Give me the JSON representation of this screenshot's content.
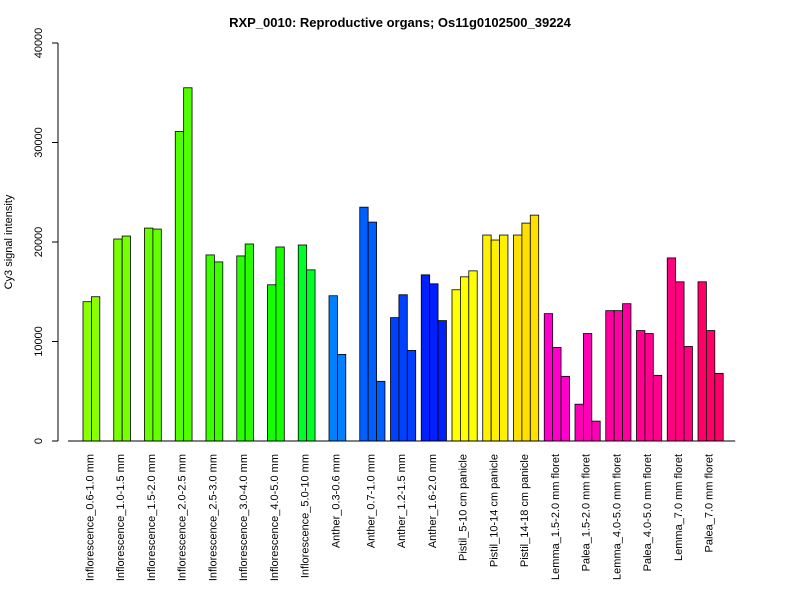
{
  "chart_data": {
    "type": "bar",
    "title": "RXP_0010: Reproductive organs; Os11g0102500_39224",
    "xlabel": "",
    "ylabel": "Cy3 signal intensity",
    "ylim": [
      0,
      40000
    ],
    "yticks": [
      "0",
      "10000",
      "20000",
      "30000",
      "40000"
    ],
    "grid": false,
    "legend": "none",
    "groups": [
      {
        "label": "Inflorescence_0.6-1.0 mm",
        "color": "#8cff00",
        "values": [
          14000,
          14500
        ]
      },
      {
        "label": "Inflorescence_1.0-1.5 mm",
        "color": "#78ff00",
        "values": [
          20300,
          20600
        ]
      },
      {
        "label": "Inflorescence_1.5-2.0 mm",
        "color": "#64ff00",
        "values": [
          21400,
          21300
        ]
      },
      {
        "label": "Inflorescence_2.0-2.5 mm",
        "color": "#50ff00",
        "values": [
          31100,
          35500
        ]
      },
      {
        "label": "Inflorescence_2.5-3.0 mm",
        "color": "#3cff00",
        "values": [
          18700,
          18000
        ]
      },
      {
        "label": "Inflorescence_3.0-4.0 mm",
        "color": "#28ff00",
        "values": [
          18600,
          19800
        ]
      },
      {
        "label": "Inflorescence_4.0-5.0 mm",
        "color": "#14ff00",
        "values": [
          15700,
          19500
        ]
      },
      {
        "label": "Inflorescence_5.0-10 mm",
        "color": "#00ff28",
        "values": [
          19700,
          17200
        ]
      },
      {
        "label": "Anther_0.3-0.6 mm",
        "color": "#0080ff",
        "values": [
          14600,
          8700
        ]
      },
      {
        "label": "Anther_0.7-1.0 mm",
        "color": "#0060ff",
        "values": [
          23500,
          22000,
          6000
        ]
      },
      {
        "label": "Anther_1.2-1.5 mm",
        "color": "#0040ff",
        "values": [
          12400,
          14700,
          9100
        ]
      },
      {
        "label": "Anther_1.6-2.0 mm",
        "color": "#0020ff",
        "values": [
          16700,
          15800,
          12100
        ]
      },
      {
        "label": "Pistil_5-10 cm panicle",
        "color": "#ffff00",
        "values": [
          15200,
          16500,
          17100
        ]
      },
      {
        "label": "Pistil_10-14 cm panicle",
        "color": "#fff000",
        "values": [
          20700,
          20200,
          20700
        ]
      },
      {
        "label": "Pistil_14-18 cm panicle",
        "color": "#ffe000",
        "values": [
          20700,
          21900,
          22700
        ]
      },
      {
        "label": "Lemma_1.5-2.0 mm floret",
        "color": "#ff00cc",
        "values": [
          12800,
          9400,
          6500
        ]
      },
      {
        "label": "Palea_1.5-2.0 mm floret",
        "color": "#ff00b8",
        "values": [
          3700,
          10800,
          2000
        ]
      },
      {
        "label": "Lemma_4.0-5.0 mm floret",
        "color": "#ff00a0",
        "values": [
          13100,
          13100,
          13800
        ]
      },
      {
        "label": "Palea_4.0-5.0 mm floret",
        "color": "#ff0090",
        "values": [
          11100,
          10800,
          6600
        ]
      },
      {
        "label": "Lemma_7.0 mm floret",
        "color": "#ff0080",
        "values": [
          18400,
          16000,
          9500
        ]
      },
      {
        "label": "Palea_7.0 mm floret",
        "color": "#ff0068",
        "values": [
          16000,
          11100,
          6800
        ]
      }
    ]
  }
}
